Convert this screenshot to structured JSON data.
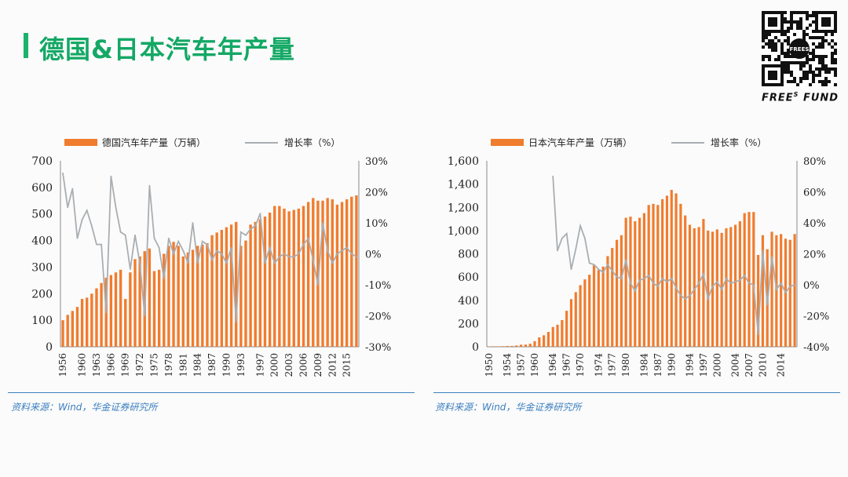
{
  "page": {
    "title": "德国&日本汽车年产量"
  },
  "brand": {
    "name": "FREE",
    "superscript": "S",
    "suffix": "FUND",
    "qr_label": "FREES"
  },
  "colors": {
    "accent": "#13a865",
    "bar": "#f07c2e",
    "line": "#a9aeb2",
    "source": "#3b7fc0"
  },
  "charts": [
    {
      "source": "资料来源：Wind，华金证券研究所"
    },
    {
      "source": "资料来源：Wind，华金证券研究所"
    }
  ],
  "chart_data": [
    {
      "type": "bar+line",
      "legend": {
        "bar": "德国汽车年产量（万辆）",
        "line": "增长率（%）",
        "placement": "top"
      },
      "x": [
        1956,
        1957,
        1958,
        1959,
        1960,
        1961,
        1962,
        1963,
        1964,
        1965,
        1966,
        1967,
        1968,
        1969,
        1970,
        1971,
        1972,
        1973,
        1974,
        1975,
        1976,
        1977,
        1978,
        1979,
        1980,
        1981,
        1982,
        1983,
        1984,
        1985,
        1986,
        1987,
        1988,
        1989,
        1990,
        1991,
        1992,
        1993,
        1994,
        1995,
        1996,
        1997,
        1998,
        1999,
        2000,
        2001,
        2002,
        2003,
        2004,
        2005,
        2006,
        2007,
        2008,
        2009,
        2010,
        2011,
        2012,
        2013,
        2014,
        2015,
        2016,
        2017
      ],
      "x_ticks": [
        "1956",
        "1960",
        "1963",
        "1966",
        "1969",
        "1972",
        "1975",
        "1978",
        "1981",
        "1984",
        "1987",
        "1990",
        "1993",
        "1997",
        "2000",
        "2003",
        "2006",
        "2009",
        "2012",
        "2015"
      ],
      "series": [
        {
          "name": "德国汽车年产量（万辆）",
          "axis": "left",
          "kind": "bar",
          "values": [
            100,
            120,
            135,
            150,
            180,
            185,
            200,
            220,
            240,
            260,
            270,
            280,
            290,
            180,
            280,
            330,
            340,
            360,
            370,
            285,
            290,
            350,
            380,
            395,
            380,
            340,
            355,
            365,
            380,
            385,
            390,
            420,
            430,
            440,
            450,
            460,
            470,
            380,
            400,
            460,
            470,
            480,
            490,
            505,
            530,
            530,
            520,
            510,
            515,
            520,
            530,
            545,
            560,
            550,
            550,
            560,
            555,
            535,
            545,
            555,
            565,
            570
          ]
        },
        {
          "name": "增长率（%）",
          "axis": "right",
          "kind": "line",
          "values": [
            26,
            15,
            21,
            5,
            11,
            14,
            9,
            3,
            3,
            -19,
            25,
            15,
            7,
            6,
            -5,
            6,
            -3,
            -20,
            22,
            5,
            2,
            -8,
            5,
            0,
            4,
            1,
            -3,
            10,
            -3,
            4,
            3,
            -2,
            1,
            0,
            -3,
            2,
            -22,
            7,
            6,
            8,
            9,
            13,
            -3,
            2,
            -3,
            -1,
            0,
            -1,
            -1,
            0,
            3,
            5,
            -2,
            -10,
            10,
            1,
            -3,
            0,
            1,
            2,
            0,
            -1
          ]
        }
      ],
      "y_left": {
        "min": 0,
        "max": 700,
        "ticks": [
          "0",
          "100",
          "200",
          "300",
          "400",
          "500",
          "600",
          "700"
        ]
      },
      "y_right": {
        "min": -30,
        "max": 30,
        "ticks": [
          "-30%",
          "-20%",
          "-10%",
          "0%",
          "10%",
          "20%",
          "30%"
        ]
      }
    },
    {
      "type": "bar+line",
      "legend": {
        "bar": "日本汽车年产量（万辆）",
        "line": "增长率（%）",
        "placement": "top"
      },
      "x": [
        1950,
        1951,
        1952,
        1953,
        1954,
        1955,
        1956,
        1957,
        1958,
        1959,
        1960,
        1961,
        1962,
        1963,
        1964,
        1965,
        1966,
        1967,
        1968,
        1969,
        1970,
        1971,
        1972,
        1973,
        1974,
        1975,
        1976,
        1977,
        1978,
        1979,
        1980,
        1981,
        1982,
        1983,
        1984,
        1985,
        1986,
        1987,
        1988,
        1989,
        1990,
        1991,
        1992,
        1993,
        1994,
        1995,
        1996,
        1997,
        1998,
        1999,
        2000,
        2001,
        2002,
        2003,
        2004,
        2005,
        2006,
        2007,
        2008,
        2009,
        2010,
        2011,
        2012,
        2013,
        2014,
        2015,
        2016,
        2017
      ],
      "x_ticks": [
        "1950",
        "1954",
        "1957",
        "1960",
        "1964",
        "1967",
        "1970",
        "1974",
        "1977",
        "1980",
        "1984",
        "1987",
        "1990",
        "1994",
        "1997",
        "2000",
        "2004",
        "2007",
        "2010",
        "2014"
      ],
      "series": [
        {
          "name": "日本汽车年产量（万辆）",
          "axis": "left",
          "kind": "bar",
          "values": [
            3,
            4,
            4,
            5,
            7,
            7,
            11,
            18,
            19,
            26,
            48,
            81,
            99,
            128,
            170,
            190,
            230,
            310,
            410,
            470,
            530,
            580,
            620,
            700,
            660,
            690,
            780,
            850,
            920,
            960,
            1110,
            1120,
            1080,
            1110,
            1150,
            1220,
            1230,
            1220,
            1270,
            1300,
            1350,
            1320,
            1230,
            1130,
            1050,
            1020,
            1030,
            1100,
            1000,
            990,
            1010,
            980,
            1020,
            1030,
            1050,
            1080,
            1150,
            1160,
            1160,
            790,
            960,
            840,
            990,
            960,
            970,
            930,
            920,
            970
          ]
        },
        {
          "name": "增长率（%）",
          "axis": "right",
          "kind": "line",
          "values": [
            null,
            null,
            null,
            null,
            null,
            null,
            null,
            null,
            null,
            null,
            null,
            null,
            null,
            null,
            70,
            22,
            30,
            33,
            10,
            23,
            38,
            30,
            14,
            13,
            10,
            8,
            13,
            9,
            5,
            4,
            16,
            1,
            -4,
            3,
            4,
            6,
            1,
            -1,
            4,
            2,
            4,
            -2,
            -7,
            -9,
            -7,
            -3,
            1,
            7,
            -9,
            -1,
            2,
            -3,
            4,
            1,
            2,
            3,
            6,
            1,
            0,
            -32,
            22,
            -13,
            18,
            -3,
            1,
            -5,
            -1,
            0
          ]
        }
      ],
      "y_left": {
        "min": 0,
        "max": 1600,
        "ticks": [
          "0",
          "200",
          "400",
          "600",
          "800",
          "1,000",
          "1,200",
          "1,400",
          "1,600"
        ]
      },
      "y_right": {
        "min": -40,
        "max": 80,
        "ticks": [
          "-40%",
          "-20%",
          "0%",
          "20%",
          "40%",
          "60%",
          "80%"
        ]
      }
    }
  ]
}
